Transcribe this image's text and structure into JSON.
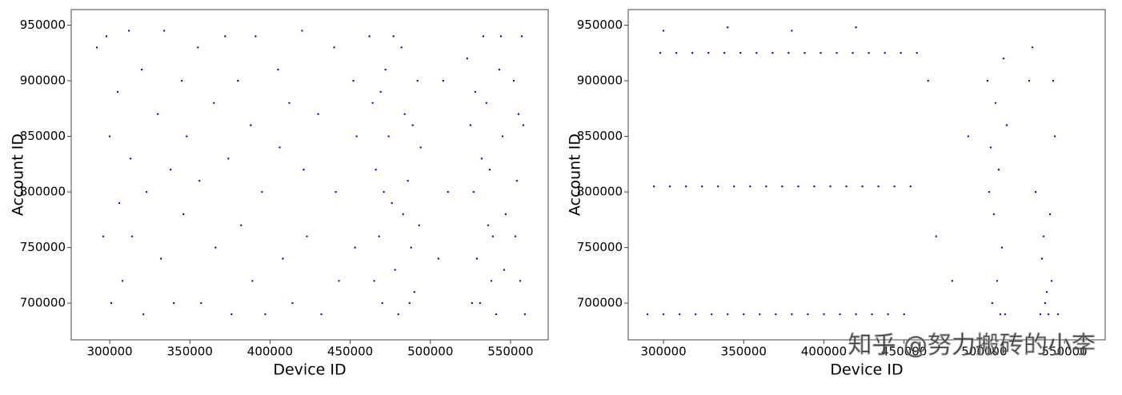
{
  "chart_data": [
    {
      "type": "scatter",
      "xlabel": "Device ID",
      "ylabel": "Account ID",
      "color": "#0000ff",
      "xlim": [
        276000,
        573500
      ],
      "ylim": [
        667000,
        964000
      ],
      "xticks": [
        300000,
        350000,
        400000,
        450000,
        500000,
        550000
      ],
      "yticks": [
        700000,
        750000,
        800000,
        850000,
        900000,
        950000
      ],
      "x": [
        292000,
        296000,
        298000,
        300000,
        301000,
        305000,
        306000,
        308000,
        312000,
        313000,
        314000,
        320000,
        321000,
        323000,
        330000,
        332000,
        334000,
        338000,
        340000,
        345000,
        346000,
        348000,
        355000,
        356000,
        357000,
        365000,
        366000,
        372000,
        374000,
        376000,
        380000,
        382000,
        388000,
        389000,
        391000,
        395000,
        397000,
        405000,
        406000,
        408000,
        412000,
        414000,
        420000,
        421000,
        423000,
        430000,
        432000,
        440000,
        441000,
        443000,
        452000,
        453000,
        454000,
        462000,
        464000,
        466000,
        468000,
        470000,
        472000,
        474000,
        476000,
        478000,
        480000,
        482000,
        484000,
        486000,
        488000,
        490000,
        492000,
        494000,
        465000,
        471000,
        477000,
        483000,
        489000,
        469000,
        487000,
        493000,
        505000,
        508000,
        511000,
        523000,
        525000,
        527000,
        529000,
        531000,
        533000,
        535000,
        537000,
        539000,
        541000,
        543000,
        545000,
        547000,
        526000,
        532000,
        538000,
        544000,
        528000,
        536000,
        546000,
        552000,
        554000,
        556000,
        558000,
        557000,
        553000,
        559000,
        555000
      ],
      "values": [
        930000,
        760000,
        940000,
        850000,
        700000,
        890000,
        790000,
        720000,
        945000,
        830000,
        760000,
        910000,
        690000,
        800000,
        870000,
        740000,
        945000,
        820000,
        700000,
        900000,
        780000,
        850000,
        930000,
        810000,
        700000,
        880000,
        750000,
        940000,
        830000,
        690000,
        900000,
        770000,
        860000,
        720000,
        940000,
        800000,
        690000,
        910000,
        840000,
        740000,
        880000,
        700000,
        945000,
        820000,
        760000,
        870000,
        690000,
        930000,
        800000,
        720000,
        900000,
        750000,
        850000,
        940000,
        880000,
        820000,
        760000,
        700000,
        910000,
        850000,
        790000,
        730000,
        690000,
        930000,
        870000,
        810000,
        750000,
        710000,
        900000,
        840000,
        720000,
        800000,
        940000,
        780000,
        860000,
        890000,
        700000,
        770000,
        740000,
        900000,
        800000,
        920000,
        860000,
        800000,
        740000,
        700000,
        940000,
        880000,
        820000,
        760000,
        690000,
        910000,
        850000,
        780000,
        700000,
        830000,
        720000,
        940000,
        890000,
        770000,
        730000,
        900000,
        810000,
        720000,
        860000,
        940000,
        760000,
        690000,
        870000
      ]
    },
    {
      "type": "scatter",
      "xlabel": "Device ID",
      "ylabel": "Account ID",
      "color": "#0000ff",
      "watermark": "知乎 @努力搬砖的小李",
      "xlim": [
        278000,
        575400
      ],
      "ylim": [
        667000,
        964000
      ],
      "xticks": [
        300000,
        350000,
        400000,
        450000,
        500000,
        550000
      ],
      "yticks": [
        700000,
        750000,
        800000,
        850000,
        900000,
        950000
      ],
      "x": [
        290000,
        294000,
        298000,
        300000,
        304000,
        308000,
        310000,
        314000,
        318000,
        320000,
        324000,
        328000,
        330000,
        334000,
        338000,
        340000,
        344000,
        348000,
        350000,
        354000,
        358000,
        360000,
        364000,
        368000,
        370000,
        374000,
        378000,
        380000,
        384000,
        388000,
        390000,
        394000,
        398000,
        400000,
        404000,
        408000,
        410000,
        414000,
        418000,
        420000,
        424000,
        428000,
        430000,
        434000,
        438000,
        440000,
        444000,
        448000,
        450000,
        454000,
        458000,
        300000,
        340000,
        380000,
        420000,
        465000,
        470000,
        480000,
        490000,
        502000,
        504000,
        506000,
        508000,
        510000,
        512000,
        503000,
        507000,
        511000,
        514000,
        505000,
        509000,
        513000,
        528000,
        532000,
        536000,
        538000,
        540000,
        542000,
        537000,
        541000,
        544000,
        539000,
        535000,
        543000,
        530000,
        546000
      ],
      "values": [
        690000,
        805000,
        925000,
        690000,
        805000,
        925000,
        690000,
        805000,
        925000,
        690000,
        805000,
        925000,
        690000,
        805000,
        925000,
        690000,
        805000,
        925000,
        690000,
        805000,
        925000,
        690000,
        805000,
        925000,
        690000,
        805000,
        925000,
        690000,
        805000,
        925000,
        690000,
        805000,
        925000,
        690000,
        805000,
        925000,
        690000,
        805000,
        925000,
        690000,
        805000,
        925000,
        690000,
        805000,
        925000,
        690000,
        805000,
        925000,
        690000,
        805000,
        925000,
        945000,
        948000,
        945000,
        948000,
        900000,
        760000,
        720000,
        850000,
        900000,
        840000,
        780000,
        720000,
        690000,
        920000,
        800000,
        880000,
        750000,
        860000,
        700000,
        820000,
        690000,
        900000,
        800000,
        740000,
        700000,
        690000,
        720000,
        760000,
        780000,
        850000,
        710000,
        690000,
        900000,
        930000,
        690000
      ]
    }
  ]
}
